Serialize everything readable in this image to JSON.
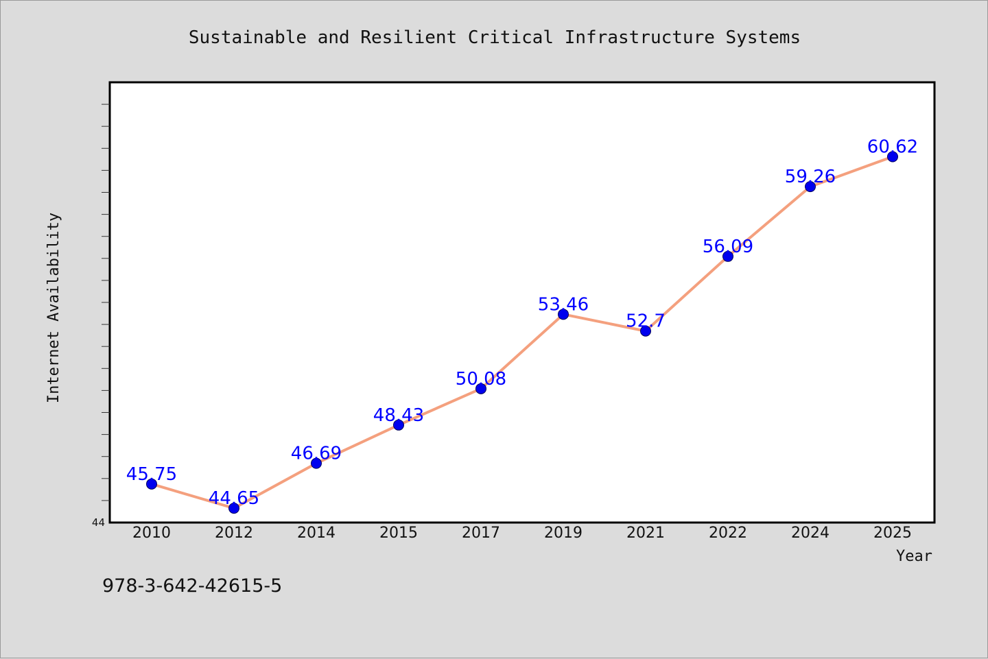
{
  "colors": {
    "background": "#dcdcdc",
    "plot_background": "#ffffff",
    "line": "#f4a07e",
    "marker": "#0000ee",
    "data_label": "#0000ff"
  },
  "footer": {
    "isbn": "978-3-642-42615-5"
  },
  "chart_data": {
    "type": "line",
    "title": "Sustainable and Resilient Critical Infrastructure Systems",
    "xlabel": "Year",
    "ylabel": "Internet Availability",
    "categories": [
      "2010",
      "2012",
      "2014",
      "2015",
      "2017",
      "2019",
      "2021",
      "2022",
      "2024",
      "2025"
    ],
    "series": [
      {
        "values": [
          45.75,
          44.65,
          46.69,
          48.43,
          50.08,
          53.46,
          52.7,
          56.09,
          59.26,
          60.62
        ]
      }
    ],
    "data_labels": [
      "45.75",
      "44.65",
      "46.69",
      "48.43",
      "50.08",
      "53.46",
      "52.7",
      "56.09",
      "59.26",
      "60.62"
    ],
    "ylim": [
      44,
      64
    ],
    "y_tick_labels": [
      "44"
    ],
    "grid": false,
    "legend": "none"
  }
}
